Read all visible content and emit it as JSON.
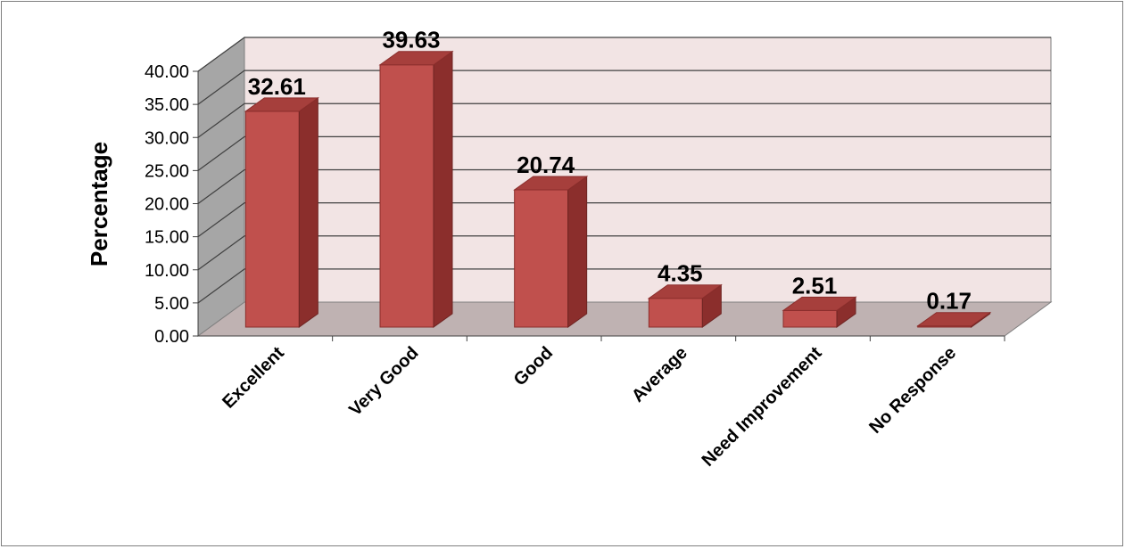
{
  "chart_data": {
    "type": "bar",
    "title": "",
    "xlabel": "",
    "ylabel": "Percentage",
    "ylim": [
      0,
      40
    ],
    "yticks": [
      "0.00",
      "5.00",
      "10.00",
      "15.00",
      "20.00",
      "25.00",
      "30.00",
      "35.00",
      "40.00"
    ],
    "categories": [
      "Excellent",
      "Very Good",
      "Good",
      "Average",
      "Need Improvement",
      "No Response"
    ],
    "values": [
      32.61,
      39.63,
      20.74,
      4.35,
      2.51,
      0.17
    ],
    "data_labels": [
      "32.61",
      "39.63",
      "20.74",
      "4.35",
      "2.51",
      "0.17"
    ],
    "grid": true,
    "style": "3d-column",
    "colors": {
      "bar_front": "#c0504d",
      "bar_side": "#8b2e2c",
      "bar_top": "#a63f3c",
      "back_wall": "#f2e4e4",
      "side_wall": "#a6a6a6",
      "floor": "#bfb2b2",
      "gridline": "#404040"
    }
  }
}
